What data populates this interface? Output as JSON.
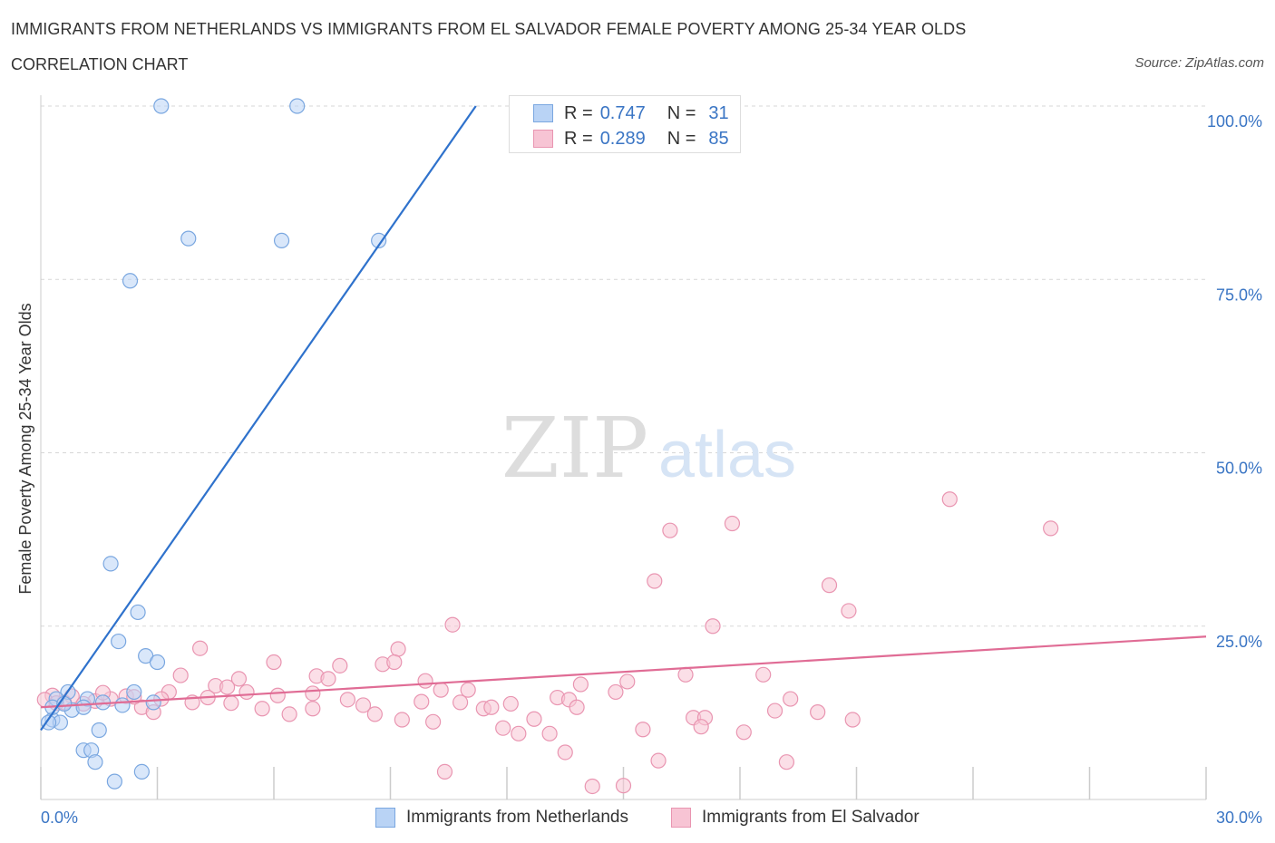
{
  "header": {
    "title": "IMMIGRANTS FROM NETHERLANDS VS IMMIGRANTS FROM EL SALVADOR FEMALE POVERTY AMONG 25-34 YEAR OLDS",
    "subtitle": "CORRELATION CHART",
    "source": "Source: ZipAtlas.com"
  },
  "legend": {
    "rows": [
      {
        "r_key": "R =",
        "r_val": "0.747",
        "n_key": "N =",
        "n_val": "31"
      },
      {
        "r_key": "R =",
        "r_val": "0.289",
        "n_key": "N =",
        "n_val": "85"
      }
    ]
  },
  "bottom_legend": {
    "netherlands": "Immigrants from Netherlands",
    "el_salvador": "Immigrants from El Salvador"
  },
  "watermark": {
    "zip": "ZIP",
    "atlas": "atlas"
  },
  "colors": {
    "netherlands_fill": "#b9d3f5",
    "netherlands_stroke": "#7aa7e0",
    "netherlands_line": "#2f72cc",
    "el_salvador_fill": "#f7c4d4",
    "el_salvador_stroke": "#e995b1",
    "el_salvador_line": "#e06c95",
    "tick_label": "#3a75c4",
    "grid": "#d7d7d7"
  },
  "chart_data": {
    "type": "scatter",
    "title": "IMMIGRANTS FROM NETHERLANDS VS IMMIGRANTS FROM EL SALVADOR FEMALE POVERTY AMONG 25-34 YEAR OLDS",
    "xlabel": "",
    "ylabel": "Female Poverty Among 25-34 Year Olds",
    "xlim": [
      0,
      30
    ],
    "ylim": [
      0,
      100
    ],
    "x_tick_labels": [
      "0.0%",
      "30.0%"
    ],
    "y_ticks": [
      25,
      50,
      75,
      100
    ],
    "y_tick_labels": [
      "25.0%",
      "50.0%",
      "75.0%",
      "100.0%"
    ],
    "grid": true,
    "legend_position": "top-center",
    "series": [
      {
        "name": "Immigrants from Netherlands",
        "R": 0.747,
        "N": 31,
        "trend": {
          "x": [
            0.0,
            11.2
          ],
          "y": [
            10.0,
            100.0
          ]
        },
        "points": [
          [
            3.1,
            100.0
          ],
          [
            6.6,
            100.0
          ],
          [
            3.8,
            80.9
          ],
          [
            6.2,
            80.6
          ],
          [
            8.7,
            80.6
          ],
          [
            2.3,
            74.8
          ],
          [
            1.8,
            34.0
          ],
          [
            2.5,
            27.0
          ],
          [
            2.0,
            22.8
          ],
          [
            2.7,
            20.7
          ],
          [
            3.0,
            19.8
          ],
          [
            0.7,
            15.5
          ],
          [
            0.4,
            14.5
          ],
          [
            1.2,
            14.5
          ],
          [
            1.6,
            14.0
          ],
          [
            2.1,
            13.6
          ],
          [
            2.9,
            14.0
          ],
          [
            0.8,
            12.9
          ],
          [
            1.1,
            13.3
          ],
          [
            0.3,
            11.5
          ],
          [
            0.5,
            11.1
          ],
          [
            0.2,
            11.1
          ],
          [
            1.5,
            10.0
          ],
          [
            1.1,
            7.1
          ],
          [
            1.3,
            7.1
          ],
          [
            1.4,
            5.4
          ],
          [
            2.6,
            4.0
          ],
          [
            1.9,
            2.6
          ],
          [
            0.3,
            13.3
          ],
          [
            0.6,
            13.8
          ],
          [
            2.4,
            15.5
          ]
        ]
      },
      {
        "name": "Immigrants from El Salvador",
        "R": 0.289,
        "N": 85,
        "trend": {
          "x": [
            0.0,
            30.0
          ],
          "y": [
            13.3,
            23.5
          ]
        },
        "points": [
          [
            23.4,
            43.3
          ],
          [
            26.0,
            39.1
          ],
          [
            17.8,
            39.8
          ],
          [
            16.2,
            38.8
          ],
          [
            15.8,
            31.5
          ],
          [
            20.3,
            30.9
          ],
          [
            20.8,
            27.2
          ],
          [
            10.6,
            25.2
          ],
          [
            17.3,
            25.0
          ],
          [
            4.1,
            21.8
          ],
          [
            9.2,
            21.7
          ],
          [
            6.0,
            19.8
          ],
          [
            7.7,
            19.3
          ],
          [
            8.8,
            19.5
          ],
          [
            9.1,
            19.8
          ],
          [
            5.1,
            17.4
          ],
          [
            7.1,
            17.8
          ],
          [
            7.4,
            17.4
          ],
          [
            9.9,
            17.1
          ],
          [
            3.6,
            17.9
          ],
          [
            16.6,
            18.0
          ],
          [
            18.6,
            18.0
          ],
          [
            4.5,
            16.4
          ],
          [
            3.3,
            15.5
          ],
          [
            4.8,
            16.2
          ],
          [
            5.3,
            15.5
          ],
          [
            6.1,
            15.0
          ],
          [
            7.0,
            15.3
          ],
          [
            10.3,
            15.8
          ],
          [
            11.0,
            15.8
          ],
          [
            13.9,
            16.6
          ],
          [
            14.8,
            15.5
          ],
          [
            0.3,
            15.0
          ],
          [
            0.8,
            14.9
          ],
          [
            1.4,
            14.2
          ],
          [
            1.8,
            14.5
          ],
          [
            2.2,
            14.9
          ],
          [
            3.1,
            14.5
          ],
          [
            3.9,
            14.0
          ],
          [
            4.3,
            14.7
          ],
          [
            0.6,
            14.0
          ],
          [
            1.1,
            13.8
          ],
          [
            2.6,
            13.3
          ],
          [
            2.9,
            12.6
          ],
          [
            4.9,
            13.9
          ],
          [
            5.7,
            13.1
          ],
          [
            6.4,
            12.3
          ],
          [
            7.0,
            13.1
          ],
          [
            7.9,
            14.4
          ],
          [
            8.3,
            13.6
          ],
          [
            8.6,
            12.3
          ],
          [
            9.3,
            11.5
          ],
          [
            9.8,
            14.1
          ],
          [
            10.1,
            11.2
          ],
          [
            10.8,
            14.0
          ],
          [
            11.4,
            13.1
          ],
          [
            11.6,
            13.3
          ],
          [
            12.1,
            13.8
          ],
          [
            13.3,
            14.7
          ],
          [
            13.6,
            14.4
          ],
          [
            13.8,
            13.3
          ],
          [
            15.1,
            17.0
          ],
          [
            16.8,
            11.8
          ],
          [
            17.1,
            11.8
          ],
          [
            19.3,
            14.5
          ],
          [
            20.0,
            12.6
          ],
          [
            20.9,
            11.5
          ],
          [
            11.9,
            10.3
          ],
          [
            12.3,
            9.5
          ],
          [
            13.1,
            9.5
          ],
          [
            13.5,
            6.8
          ],
          [
            15.5,
            10.1
          ],
          [
            17.0,
            10.5
          ],
          [
            18.1,
            9.7
          ],
          [
            15.9,
            5.6
          ],
          [
            10.4,
            4.0
          ],
          [
            14.2,
            1.9
          ],
          [
            15.0,
            2.0
          ],
          [
            19.2,
            5.4
          ],
          [
            0.1,
            14.4
          ],
          [
            0.4,
            13.9
          ],
          [
            1.6,
            15.4
          ],
          [
            2.4,
            14.8
          ],
          [
            12.7,
            11.6
          ],
          [
            18.9,
            12.8
          ]
        ]
      }
    ]
  }
}
